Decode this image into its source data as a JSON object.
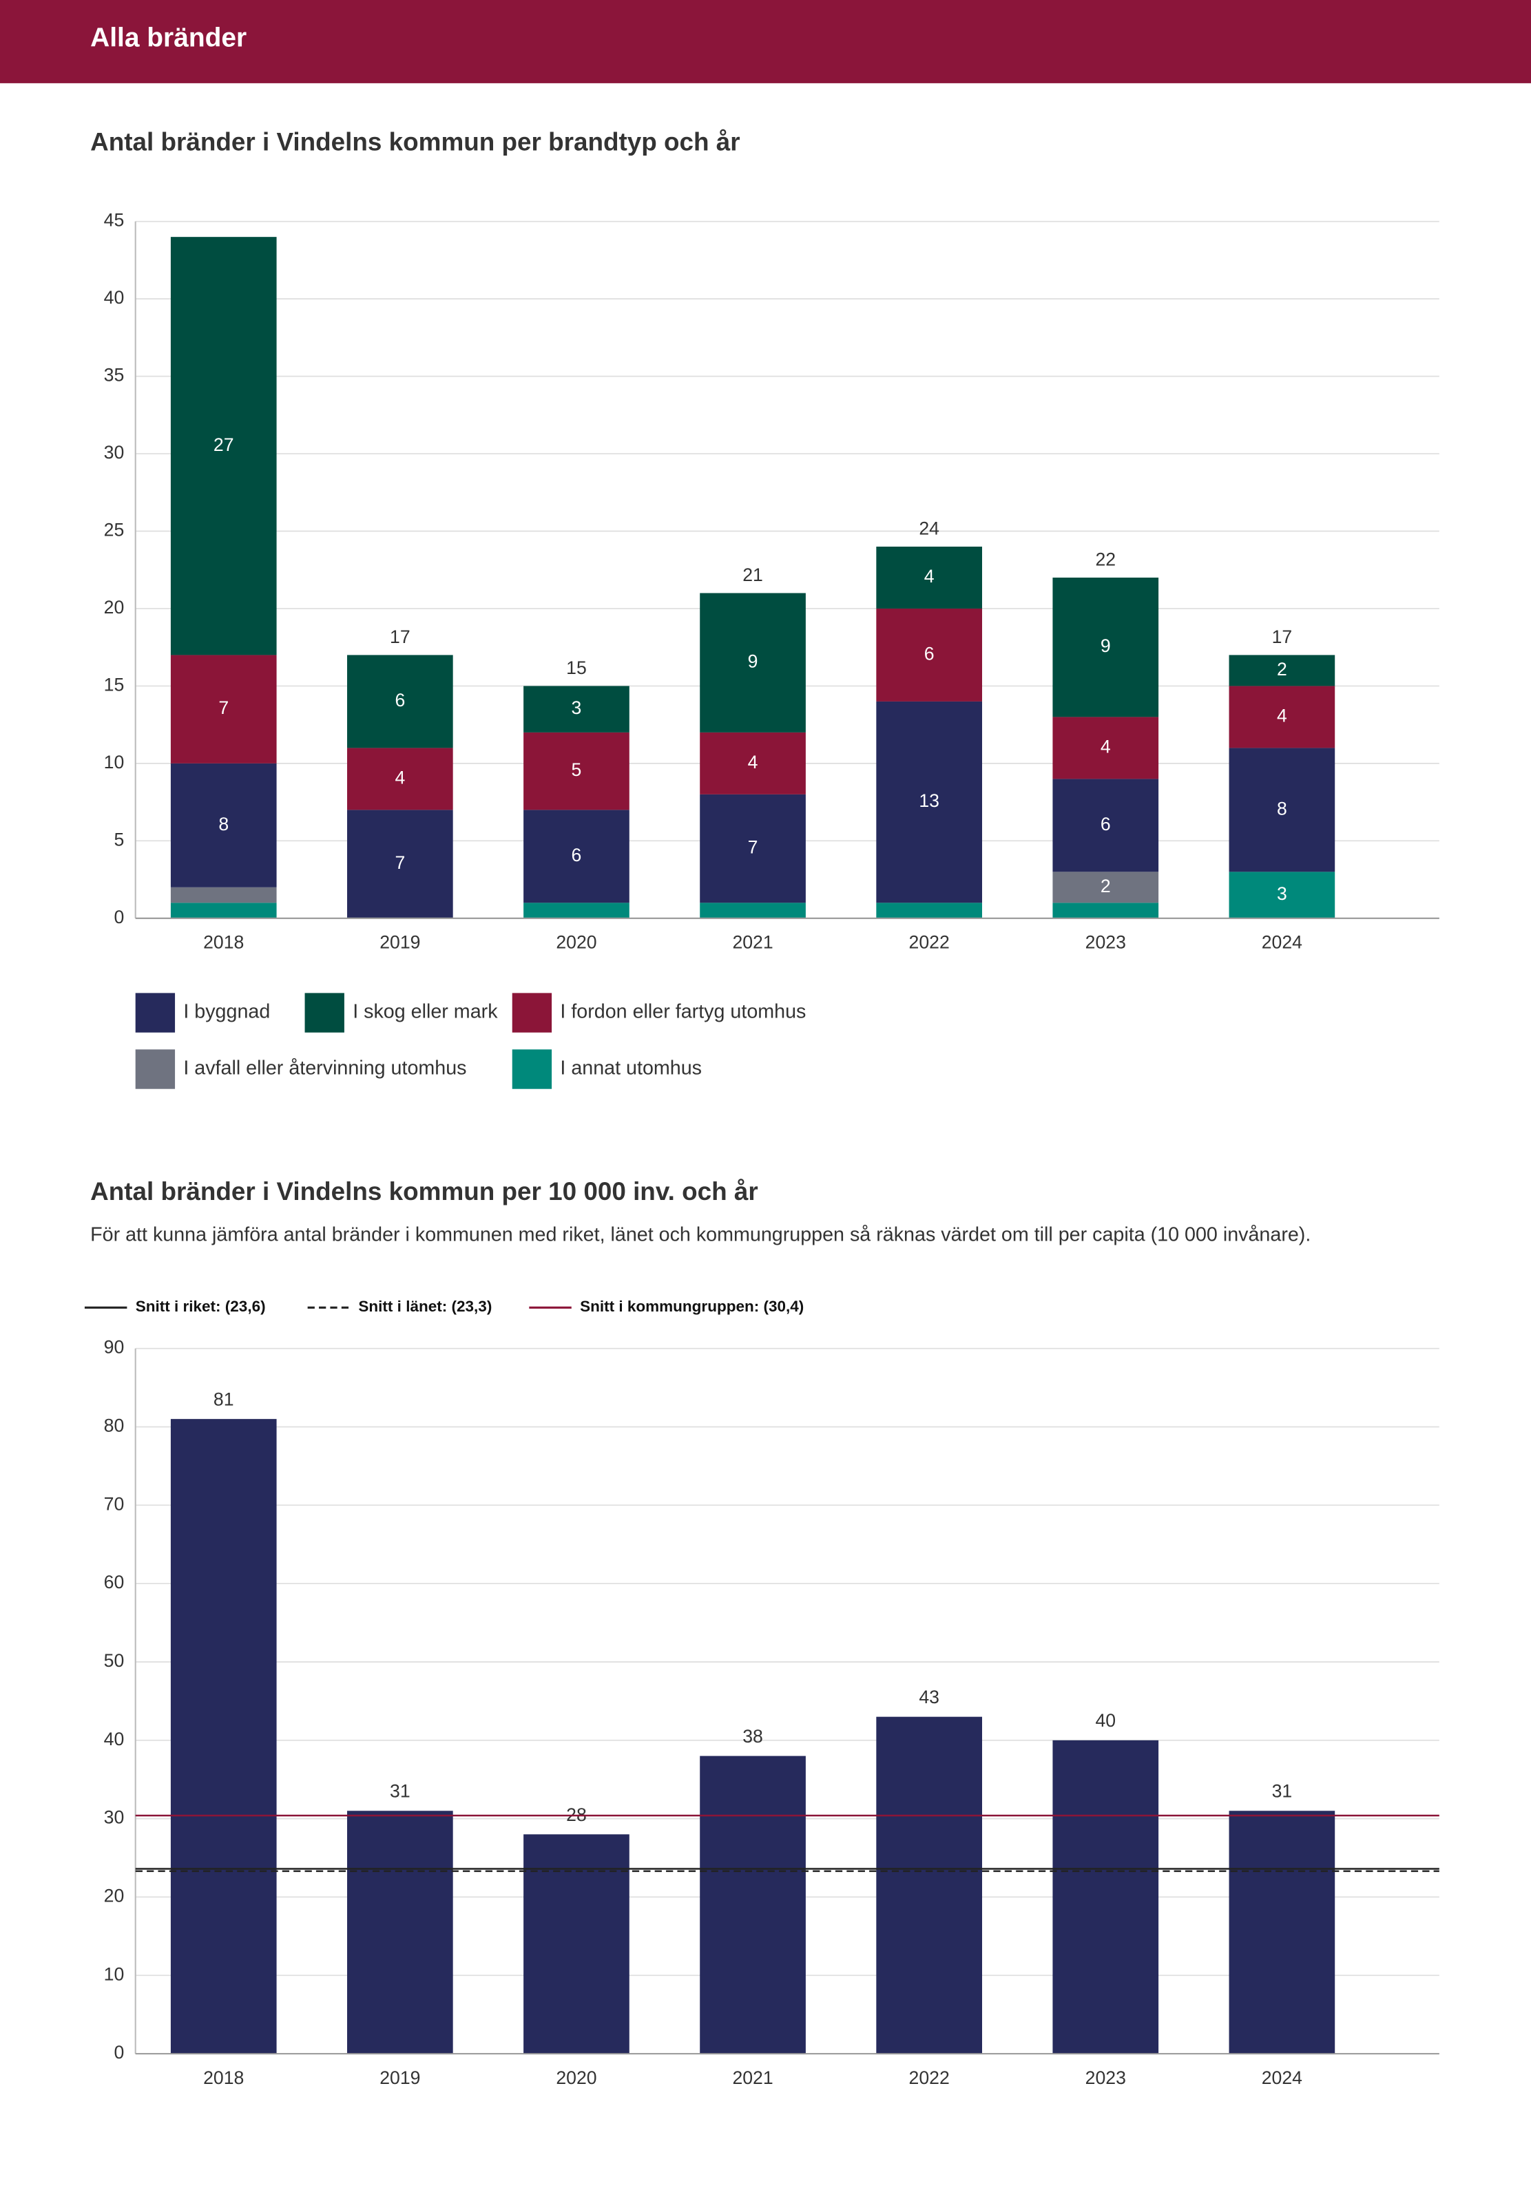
{
  "header": {
    "title": "Alla bränder"
  },
  "chart_data": [
    {
      "type": "stacked_bar",
      "title": "Antal bränder i Vindelns kommun per brandtyp och år",
      "categories": [
        "2018",
        "2019",
        "2020",
        "2021",
        "2022",
        "2023",
        "2024"
      ],
      "series": [
        {
          "name": "I annat utomhus",
          "color": "#00897b",
          "values": [
            1,
            0,
            1,
            1,
            1,
            1,
            3
          ]
        },
        {
          "name": "I avfall eller återvinning utomhus",
          "color": "#6f7380",
          "values": [
            1,
            0,
            0,
            0,
            0,
            2,
            0
          ]
        },
        {
          "name": "I byggnad",
          "color": "#262a5c",
          "values": [
            8,
            7,
            6,
            7,
            13,
            6,
            8
          ]
        },
        {
          "name": "I fordon eller fartyg utomhus",
          "color": "#8b1538",
          "values": [
            7,
            4,
            5,
            4,
            6,
            4,
            4
          ]
        },
        {
          "name": "I skog eller mark",
          "color": "#004d40",
          "values": [
            27,
            6,
            3,
            9,
            4,
            9,
            2
          ]
        }
      ],
      "totals": [
        null,
        17,
        15,
        21,
        24,
        22,
        17
      ],
      "ylim": [
        0,
        45
      ],
      "yticks": [
        0,
        5,
        10,
        15,
        20,
        25,
        30,
        35,
        40,
        45
      ],
      "grid": true
    },
    {
      "type": "bar",
      "title": "Antal bränder i Vindelns kommun per 10 000 inv. och år",
      "subtitle": "För att kunna jämföra antal bränder i kommunen med riket, länet och kommungruppen så räknas värdet om till per capita (10 000 invånare).",
      "categories": [
        "2018",
        "2019",
        "2020",
        "2021",
        "2022",
        "2023",
        "2024"
      ],
      "values": [
        81,
        31,
        28,
        38,
        43,
        40,
        31
      ],
      "color": "#262a5c",
      "reference_lines": [
        {
          "name": "Snitt i riket: (23,6)",
          "value": 23.6,
          "color": "#222222",
          "dashed": false
        },
        {
          "name": "Snitt i länet: (23,3)",
          "value": 23.3,
          "color": "#222222",
          "dashed": true
        },
        {
          "name": "Snitt i kommungruppen: (30,4)",
          "value": 30.4,
          "color": "#8b1538",
          "dashed": false
        }
      ],
      "ylim": [
        0,
        90
      ],
      "yticks": [
        0,
        10,
        20,
        30,
        40,
        50,
        60,
        70,
        80,
        90
      ],
      "grid": true
    }
  ]
}
